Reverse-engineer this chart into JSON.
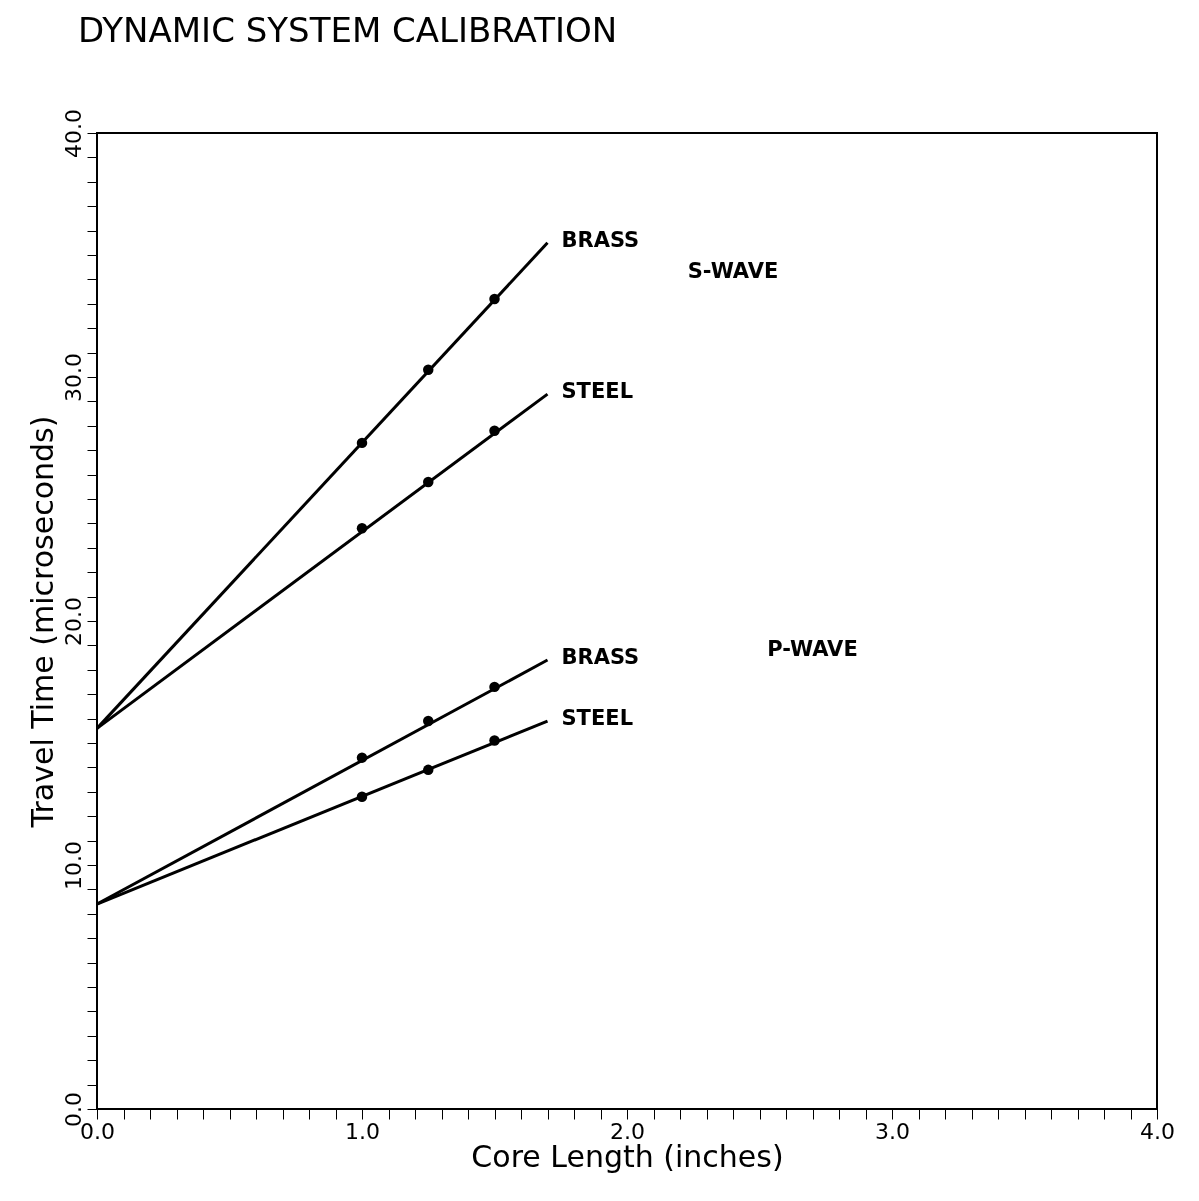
{
  "chart_data": {
    "type": "line",
    "title": "DYNAMIC SYSTEM CALIBRATION",
    "xlabel": "Core Length (inches)",
    "ylabel": "Travel Time (microseconds)",
    "xlim": [
      0,
      4
    ],
    "ylim": [
      0,
      40
    ],
    "xticks": [
      {
        "value": 0,
        "label": "0.0"
      },
      {
        "value": 0.1,
        "label": null
      },
      {
        "value": 0.2,
        "label": null
      },
      {
        "value": 0.3,
        "label": null
      },
      {
        "value": 0.4,
        "label": null
      },
      {
        "value": 0.5,
        "label": null
      },
      {
        "value": 0.6,
        "label": null
      },
      {
        "value": 0.7,
        "label": null
      },
      {
        "value": 0.8,
        "label": null
      },
      {
        "value": 0.9,
        "label": null
      },
      {
        "value": 1,
        "label": "1.0"
      },
      {
        "value": 1.1,
        "label": null
      },
      {
        "value": 1.2,
        "label": null
      },
      {
        "value": 1.3,
        "label": null
      },
      {
        "value": 1.4,
        "label": null
      },
      {
        "value": 1.5,
        "label": null
      },
      {
        "value": 1.6,
        "label": null
      },
      {
        "value": 1.7,
        "label": null
      },
      {
        "value": 1.8,
        "label": null
      },
      {
        "value": 1.9,
        "label": null
      },
      {
        "value": 2,
        "label": "2.0"
      },
      {
        "value": 2.1,
        "label": null
      },
      {
        "value": 2.2,
        "label": null
      },
      {
        "value": 2.3,
        "label": null
      },
      {
        "value": 2.4,
        "label": null
      },
      {
        "value": 2.5,
        "label": null
      },
      {
        "value": 2.6,
        "label": null
      },
      {
        "value": 2.7,
        "label": null
      },
      {
        "value": 2.8,
        "label": null
      },
      {
        "value": 2.9,
        "label": null
      },
      {
        "value": 3,
        "label": "3.0"
      },
      {
        "value": 3.1,
        "label": null
      },
      {
        "value": 3.2,
        "label": null
      },
      {
        "value": 3.3,
        "label": null
      },
      {
        "value": 3.4,
        "label": null
      },
      {
        "value": 3.5,
        "label": null
      },
      {
        "value": 3.6,
        "label": null
      },
      {
        "value": 3.7,
        "label": null
      },
      {
        "value": 3.8,
        "label": null
      },
      {
        "value": 3.9,
        "label": null
      },
      {
        "value": 4,
        "label": "4.0"
      }
    ],
    "yticks": [
      {
        "value": 0,
        "label": "0.0"
      },
      {
        "value": 1,
        "label": null
      },
      {
        "value": 2,
        "label": null
      },
      {
        "value": 3,
        "label": null
      },
      {
        "value": 4,
        "label": null
      },
      {
        "value": 5,
        "label": null
      },
      {
        "value": 6,
        "label": null
      },
      {
        "value": 7,
        "label": null
      },
      {
        "value": 8,
        "label": null
      },
      {
        "value": 9,
        "label": null
      },
      {
        "value": 10,
        "label": "10.0"
      },
      {
        "value": 11,
        "label": null
      },
      {
        "value": 12,
        "label": null
      },
      {
        "value": 13,
        "label": null
      },
      {
        "value": 14,
        "label": null
      },
      {
        "value": 15,
        "label": null
      },
      {
        "value": 16,
        "label": null
      },
      {
        "value": 17,
        "label": null
      },
      {
        "value": 18,
        "label": null
      },
      {
        "value": 19,
        "label": null
      },
      {
        "value": 20,
        "label": "20.0"
      },
      {
        "value": 21,
        "label": null
      },
      {
        "value": 22,
        "label": null
      },
      {
        "value": 23,
        "label": null
      },
      {
        "value": 24,
        "label": null
      },
      {
        "value": 25,
        "label": null
      },
      {
        "value": 26,
        "label": null
      },
      {
        "value": 27,
        "label": null
      },
      {
        "value": 28,
        "label": null
      },
      {
        "value": 29,
        "label": null
      },
      {
        "value": 30,
        "label": "30.0"
      },
      {
        "value": 31,
        "label": null
      },
      {
        "value": 32,
        "label": null
      },
      {
        "value": 33,
        "label": null
      },
      {
        "value": 34,
        "label": null
      },
      {
        "value": 35,
        "label": null
      },
      {
        "value": 36,
        "label": null
      },
      {
        "value": 37,
        "label": null
      },
      {
        "value": 38,
        "label": null
      },
      {
        "value": 39,
        "label": null
      },
      {
        "value": 40,
        "label": "40.0"
      }
    ],
    "grid": false,
    "line_style": "solid",
    "series": [
      {
        "name": "BRASS",
        "color": "#000000",
        "type": "line",
        "marker": "none",
        "x": [
          0,
          1.7
        ],
        "values": [
          15.6,
          35.5
        ]
      },
      {
        "name": "STEEL",
        "color": "#000000",
        "type": "line",
        "marker": "none",
        "x": [
          0,
          1.7
        ],
        "values": [
          15.6,
          29.3
        ]
      },
      {
        "name": "BRASS",
        "color": "#000000",
        "type": "line",
        "marker": "none",
        "x": [
          0,
          1.7
        ],
        "values": [
          8.4,
          18.4
        ]
      },
      {
        "name": "STEEL",
        "color": "#000000",
        "type": "line",
        "marker": "none",
        "x": [
          0,
          1.7
        ],
        "values": [
          8.4,
          15.9
        ]
      },
      {
        "color": "#000000",
        "type": "scatter",
        "marker": "circle",
        "x": [
          1,
          1.25,
          1.5
        ],
        "values": [
          27.3,
          30.3,
          33.2
        ]
      },
      {
        "color": "#000000",
        "type": "scatter",
        "marker": "circle",
        "x": [
          1,
          1.25,
          1.5
        ],
        "values": [
          23.8,
          25.7,
          27.8
        ]
      },
      {
        "color": "#000000",
        "type": "scatter",
        "marker": "circle",
        "x": [
          1,
          1.25,
          1.5
        ],
        "values": [
          14.4,
          15.9,
          17.3
        ]
      },
      {
        "color": "#000000",
        "type": "scatter",
        "marker": "circle",
        "x": [
          1,
          1.25,
          1.5
        ],
        "values": [
          12.8,
          13.9,
          15.1
        ]
      }
    ],
    "annotations": [
      "S-WAVE",
      "P-WAVE"
    ]
  }
}
